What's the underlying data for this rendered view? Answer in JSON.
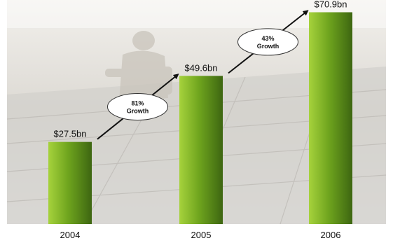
{
  "chart_data": {
    "type": "bar",
    "title": "",
    "xlabel": "",
    "ylabel": "",
    "categories": [
      "2004",
      "2005",
      "2006"
    ],
    "values": [
      27.5,
      49.6,
      70.9
    ],
    "value_labels": [
      "$27.5bn",
      "$49.6bn",
      "$70.9bn"
    ],
    "ylim": [
      0,
      75
    ],
    "grid": false,
    "legend": "none",
    "annotations": [
      {
        "from": "2004",
        "to": "2005",
        "lines": [
          "81%",
          "Growth"
        ]
      },
      {
        "from": "2005",
        "to": "2006",
        "lines": [
          "43%",
          "Growth"
        ]
      }
    ],
    "colors": {
      "bar_light": "#a6d23c",
      "bar_mid": "#6fa51e",
      "bar_dark": "#3d6611",
      "arrow": "#111111",
      "bubble_fill": "#ffffff",
      "bubble_stroke": "#333333"
    },
    "background": "faded photo of a worker installing roof panels"
  }
}
